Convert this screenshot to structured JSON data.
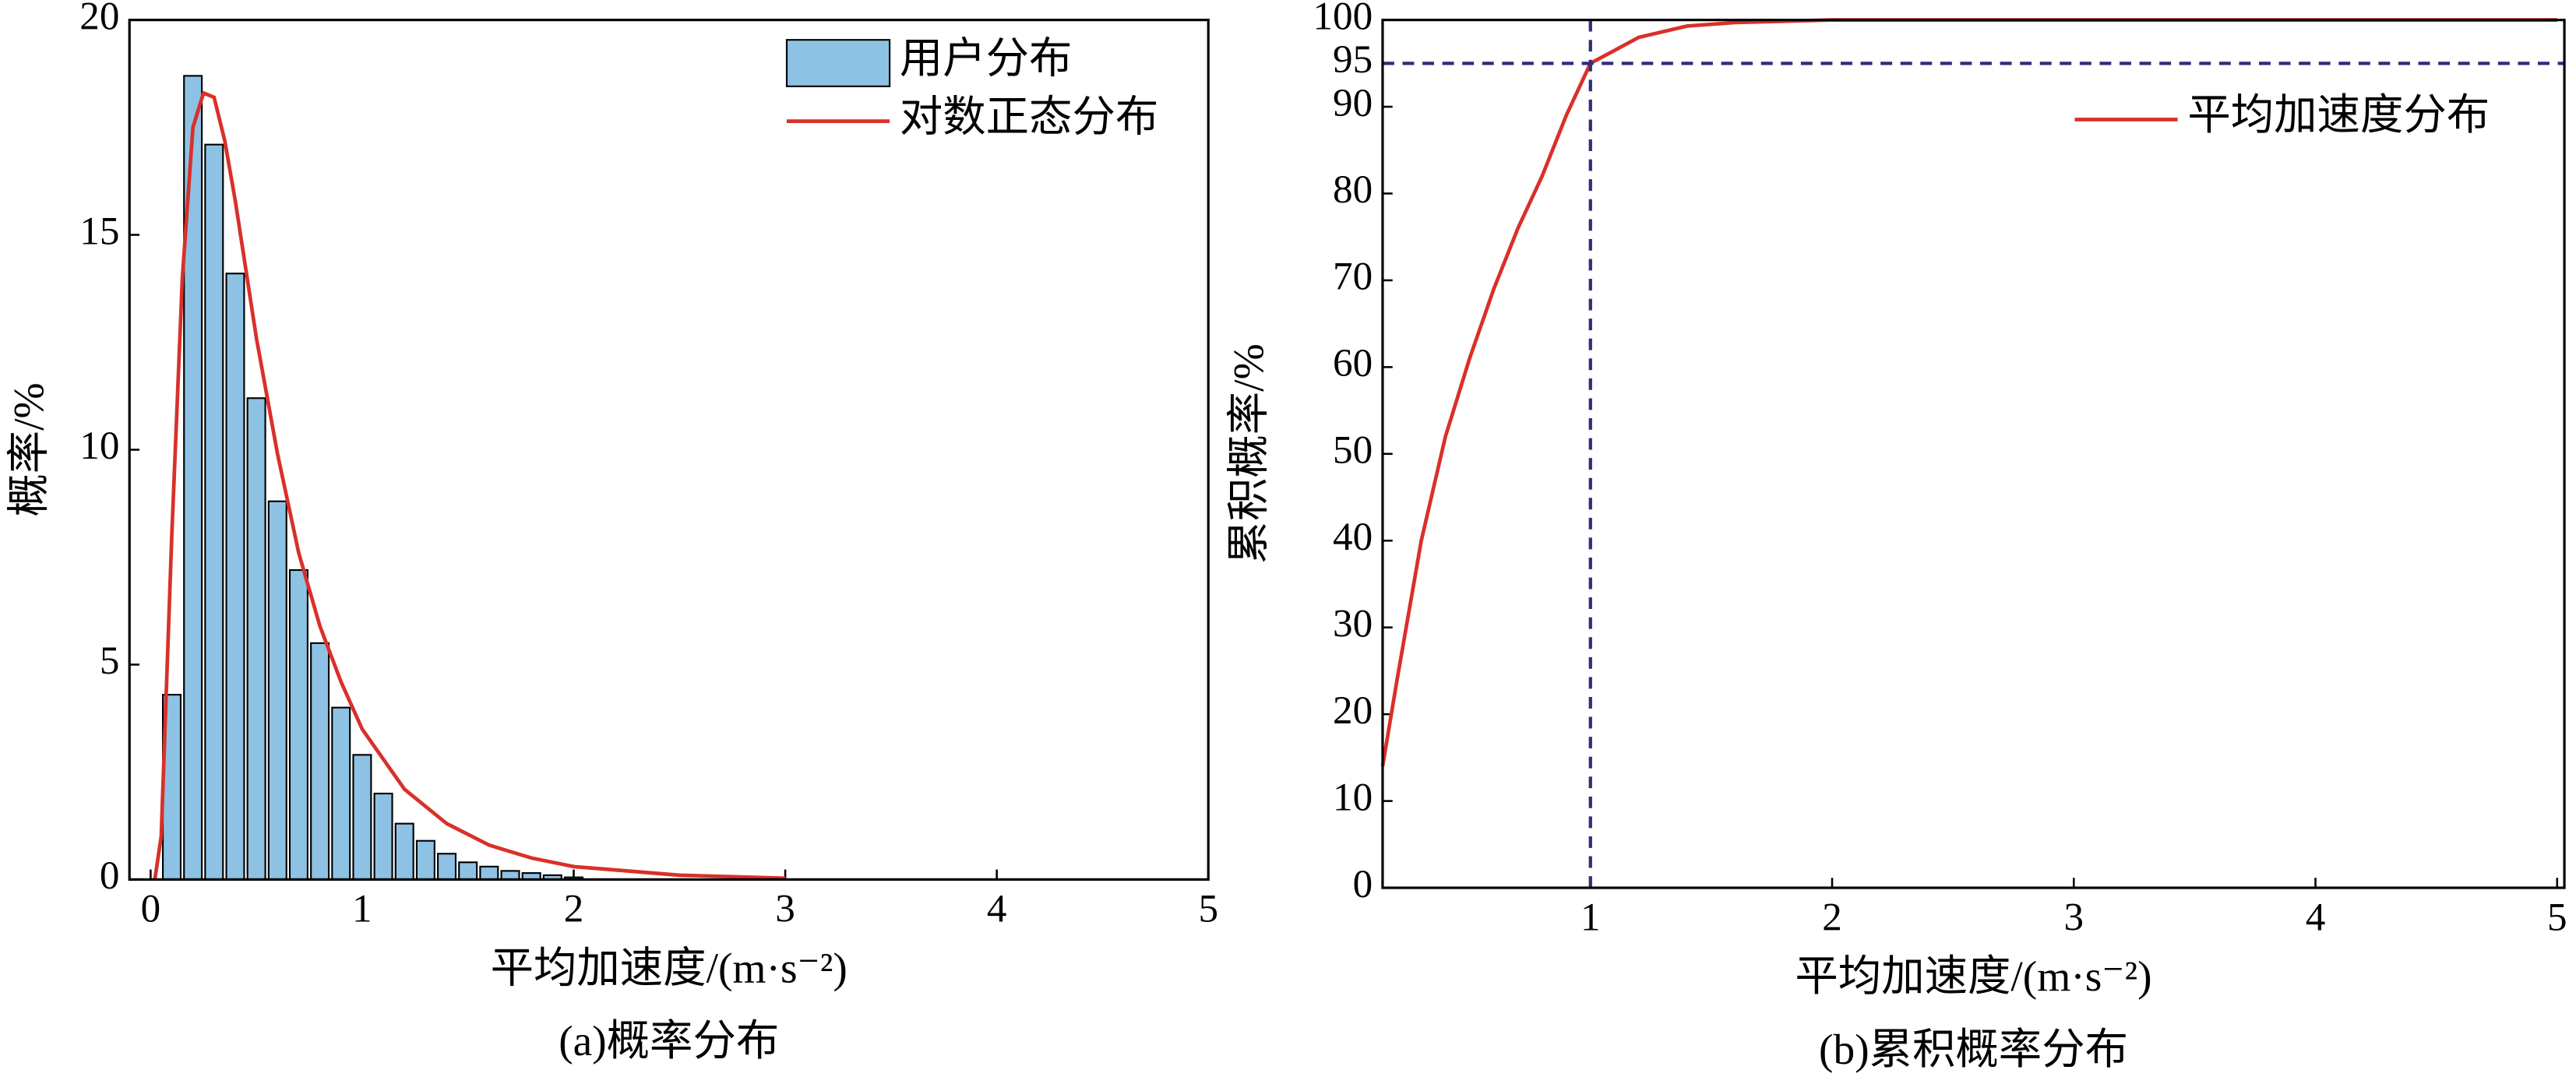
{
  "chart_data": [
    {
      "type": "histogram",
      "title": "(a)概率分布",
      "xlabel": "平均加速度/(m·s⁻²)",
      "ylabel": "概率/%",
      "xlim": [
        -0.1,
        5
      ],
      "ylim": [
        0,
        20
      ],
      "xticks": [
        0,
        1,
        2,
        3,
        4,
        5
      ],
      "yticks": [
        0,
        5,
        10,
        15,
        20
      ],
      "legend": "upper right",
      "series": [
        {
          "type": "histogram",
          "name": "用户分布",
          "color": "#8ec2e4",
          "bins": [
            0.05,
            0.15,
            0.25,
            0.35,
            0.45,
            0.55,
            0.65,
            0.75,
            0.85,
            0.95,
            1.05,
            1.15,
            1.25,
            1.35,
            1.45,
            1.55,
            1.65,
            1.75,
            1.85,
            1.95,
            2.05
          ],
          "values": [
            4.3,
            18.7,
            17.1,
            14.1,
            11.2,
            8.8,
            7.2,
            5.5,
            4.0,
            2.9,
            2.0,
            1.3,
            0.9,
            0.6,
            0.4,
            0.3,
            0.2,
            0.15,
            0.1,
            0.05
          ]
        },
        {
          "type": "line",
          "name": "对数正态分布",
          "color": "#d9302a",
          "x": [
            0.02,
            0.05,
            0.1,
            0.15,
            0.2,
            0.25,
            0.3,
            0.35,
            0.4,
            0.5,
            0.6,
            0.7,
            0.8,
            0.9,
            1.0,
            1.2,
            1.4,
            1.6,
            1.8,
            2.0,
            2.5,
            3.0
          ],
          "values": [
            0,
            1,
            8,
            14,
            17.5,
            18.3,
            18.2,
            17.2,
            15.8,
            12.6,
            9.9,
            7.6,
            5.9,
            4.6,
            3.5,
            2.1,
            1.3,
            0.8,
            0.5,
            0.3,
            0.1,
            0.03
          ]
        }
      ]
    },
    {
      "type": "line",
      "title": "(b)累积概率分布",
      "xlabel": "平均加速度/(m·s⁻²)",
      "ylabel": "累积概率/%",
      "xlim": [
        0.14,
        5.03
      ],
      "ylim": [
        0,
        100
      ],
      "xticks": [
        1,
        2,
        3,
        4,
        5
      ],
      "yticks": [
        0,
        10,
        20,
        30,
        40,
        50,
        60,
        70,
        80,
        90,
        95,
        100
      ],
      "legend": "upper right",
      "hline": 95,
      "vline": 1,
      "ref_color": "#2e2e7a",
      "series": [
        {
          "type": "line",
          "name": "平均加速度分布",
          "color": "#d9302a",
          "x": [
            0.14,
            0.2,
            0.3,
            0.4,
            0.5,
            0.6,
            0.7,
            0.8,
            0.9,
            1.0,
            1.1,
            1.2,
            1.4,
            1.6,
            2,
            3,
            5
          ],
          "values": [
            14,
            24,
            40,
            52,
            61,
            69,
            76,
            82,
            89,
            95,
            96.5,
            98,
            99.3,
            99.7,
            100,
            100,
            100
          ]
        }
      ]
    }
  ]
}
